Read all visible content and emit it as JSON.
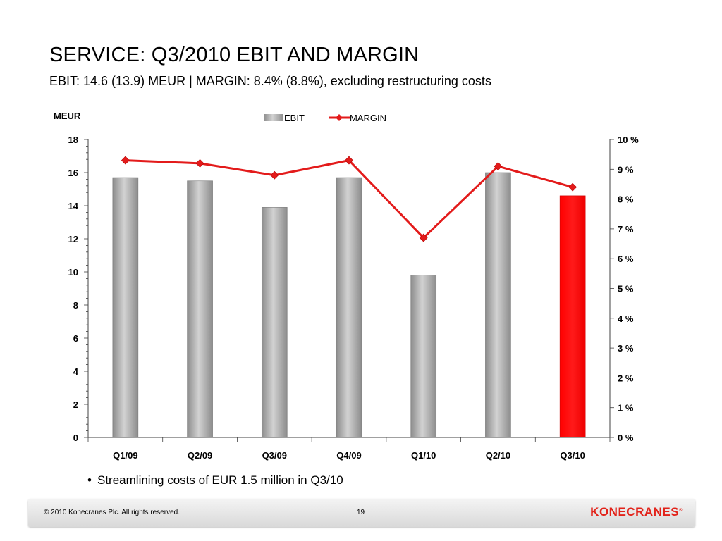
{
  "header": {
    "title": "SERVICE: Q3/2010 EBIT AND MARGIN",
    "subtitle": "EBIT: 14.6 (13.9) MEUR | MARGIN: 8.4% (8.8%), excluding restructuring costs"
  },
  "chart_data": {
    "type": "bar",
    "categories": [
      "Q1/09",
      "Q2/09",
      "Q3/09",
      "Q4/09",
      "Q1/10",
      "Q2/10",
      "Q3/10"
    ],
    "series": [
      {
        "name": "EBIT",
        "type": "bar",
        "axis": "left",
        "values": [
          15.7,
          15.5,
          13.9,
          15.7,
          9.8,
          16.0,
          14.6
        ]
      },
      {
        "name": "MARGIN",
        "type": "line",
        "axis": "right",
        "values": [
          9.3,
          9.2,
          8.8,
          9.3,
          6.7,
          9.1,
          8.4
        ]
      }
    ],
    "ylabel": "MEUR",
    "ylim": [
      0,
      18
    ],
    "yticks": [
      "0",
      "2",
      "4",
      "6",
      "8",
      "10",
      "12",
      "14",
      "16",
      "18"
    ],
    "y2lim": [
      0,
      10
    ],
    "y2ticks": [
      "0 %",
      "1 %",
      "2 %",
      "3 %",
      "4 %",
      "5 %",
      "6 %",
      "7 %",
      "8 %",
      "9 %",
      "10 %"
    ],
    "legend": "top",
    "grid": false,
    "colors": {
      "bar": "#a6a6a6",
      "highlight_bar": "#ff0000",
      "line": "#e31b1b"
    },
    "highlight_index": 6
  },
  "bullets": [
    "Streamlining costs of EUR 1.5 million in Q3/10"
  ],
  "footer": {
    "copyright": "© 2010 Konecranes Plc. All rights reserved.",
    "page": "19",
    "logo": "KONECRANES"
  }
}
